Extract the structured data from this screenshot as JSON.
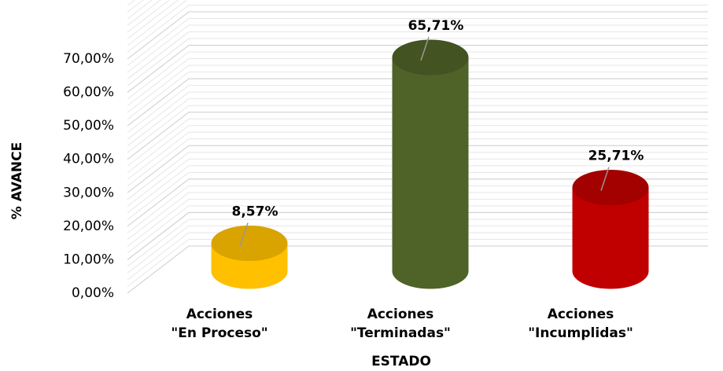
{
  "chart_data": {
    "type": "bar3d",
    "x_label": "ESTADO",
    "y_label": "% AVANCE",
    "categories": [
      "Acciones\n\"En Proceso\"",
      "Acciones\n\"Terminadas\"",
      "Acciones\n\"Incumplidas\""
    ],
    "values": [
      8.57,
      65.71,
      25.71
    ],
    "value_labels": [
      "8,57%",
      "65,71%",
      "25,71%"
    ],
    "colors": [
      "#ffc000",
      "#4f6228",
      "#c00000"
    ],
    "ylim": [
      0,
      70
    ],
    "yticks": [
      {
        "value": 0,
        "label": "0,00%"
      },
      {
        "value": 10,
        "label": "10,00%"
      },
      {
        "value": 20,
        "label": "20,00%"
      },
      {
        "value": 30,
        "label": "30,00%"
      },
      {
        "value": 40,
        "label": "40,00%"
      },
      {
        "value": 50,
        "label": "50,00%"
      },
      {
        "value": 60,
        "label": "60,00%"
      },
      {
        "value": 70,
        "label": "70,00%"
      }
    ],
    "grid": true
  }
}
